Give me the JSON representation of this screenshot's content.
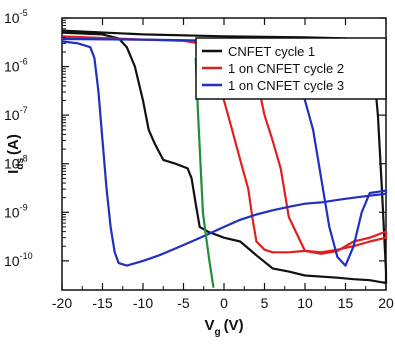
{
  "chart_data": {
    "type": "line",
    "title": "",
    "xlabel": "V",
    "xlabel_sub": "g",
    "xlabel_unit": "(V)",
    "ylabel": "I",
    "ylabel_sub": "ds",
    "ylabel_unit": "(A)",
    "xlim": [
      -20,
      20
    ],
    "ylim_log10": [
      -10.6,
      -5
    ],
    "y_scale": "log",
    "grid": false,
    "legend_position": "top-right",
    "x_ticks": [
      -20,
      -15,
      -10,
      -5,
      0,
      5,
      10,
      15,
      20
    ],
    "x_tick_labels": [
      "-20",
      "-15",
      "-10",
      "-5",
      "0",
      "5",
      "10",
      "15",
      "20"
    ],
    "y_ticks_log10": [
      -10,
      -9,
      -8,
      -7,
      -6,
      -5
    ],
    "y_tick_base": "10",
    "y_tick_exps": [
      "-10",
      "-9",
      "-8",
      "-7",
      "-6",
      "-5"
    ],
    "series": [
      {
        "name": "CNFET cycle 1",
        "color": "#111111",
        "points": [
          [
            -20,
            5e-06
          ],
          [
            -15,
            4.6e-06
          ],
          [
            -13,
            3.8e-06
          ],
          [
            -12,
            2.5e-06
          ],
          [
            -11,
            1e-06
          ],
          [
            -10,
            2e-07
          ],
          [
            -9.3,
            5e-08
          ],
          [
            -8.5,
            2.5e-08
          ],
          [
            -7.5,
            1.2e-08
          ],
          [
            -6,
            1e-08
          ],
          [
            -4.5,
            8e-09
          ],
          [
            -4,
            5e-09
          ],
          [
            -3.5,
            1.5e-09
          ],
          [
            -3,
            5e-10
          ],
          [
            -2,
            4e-10
          ],
          [
            0,
            3e-10
          ],
          [
            2,
            2.5e-10
          ],
          [
            4,
            1.3e-10
          ],
          [
            6,
            7e-11
          ],
          [
            8,
            6e-11
          ],
          [
            10,
            5e-11
          ],
          [
            14,
            4.5e-11
          ],
          [
            16,
            4.2e-11
          ],
          [
            18,
            4e-11
          ],
          [
            20,
            3.5e-11
          ],
          [
            20,
            6e-11
          ],
          [
            19.5,
            3e-09
          ],
          [
            19,
            1e-07
          ],
          [
            18.5,
            8e-07
          ],
          [
            18,
            2.5e-06
          ],
          [
            17,
            3.5e-06
          ],
          [
            15,
            3.8e-06
          ],
          [
            10,
            4e-06
          ],
          [
            0,
            4.2e-06
          ],
          [
            -10,
            4.6e-06
          ],
          [
            -20,
            5.5e-06
          ]
        ]
      },
      {
        "name": "1 on CNFET cycle 2",
        "color": "#e02020",
        "points": [
          [
            -20,
            3.8e-06
          ],
          [
            -10,
            3.6e-06
          ],
          [
            -5,
            3.4e-06
          ],
          [
            -3,
            3e-06
          ],
          [
            -2,
            2e-06
          ],
          [
            -1,
            8e-07
          ],
          [
            0,
            2e-07
          ],
          [
            1,
            5e-08
          ],
          [
            2,
            1.2e-08
          ],
          [
            3,
            3e-09
          ],
          [
            3.5,
            8e-10
          ],
          [
            4,
            2.5e-10
          ],
          [
            5,
            1.7e-10
          ],
          [
            6,
            1.5e-10
          ],
          [
            8,
            1.5e-10
          ],
          [
            10,
            1.6e-10
          ],
          [
            12,
            1.5e-10
          ],
          [
            14,
            1.7e-10
          ],
          [
            16,
            2e-10
          ],
          [
            18,
            2.5e-10
          ],
          [
            20,
            3e-10
          ],
          [
            20,
            4e-10
          ],
          [
            18,
            3e-10
          ],
          [
            16,
            2.5e-10
          ],
          [
            14,
            1.6e-10
          ],
          [
            12,
            1.4e-10
          ],
          [
            10,
            1.6e-10
          ],
          [
            8,
            8e-10
          ],
          [
            7,
            8e-09
          ],
          [
            6,
            3e-08
          ],
          [
            5,
            1e-07
          ],
          [
            4,
            6e-07
          ],
          [
            3,
            1.5e-06
          ],
          [
            2,
            2.5e-06
          ],
          [
            0,
            3.2e-06
          ],
          [
            -10,
            3.6e-06
          ],
          [
            -20,
            4.2e-06
          ]
        ]
      },
      {
        "name": "1 on CNFET cycle 3",
        "color": "#2030c0",
        "points": [
          [
            -20,
            3.3e-06
          ],
          [
            -18,
            3e-06
          ],
          [
            -16.5,
            2.5e-06
          ],
          [
            -16,
            1.5e-06
          ],
          [
            -15.5,
            3e-07
          ],
          [
            -15,
            3e-08
          ],
          [
            -14.5,
            3e-09
          ],
          [
            -14,
            5e-10
          ],
          [
            -13.5,
            1.5e-10
          ],
          [
            -13,
            9e-11
          ],
          [
            -12,
            8e-11
          ],
          [
            -10,
            1e-10
          ],
          [
            -8,
            1.3e-10
          ],
          [
            -6,
            1.8e-10
          ],
          [
            -4,
            2.5e-10
          ],
          [
            -2,
            3.5e-10
          ],
          [
            0,
            5e-10
          ],
          [
            2,
            7e-10
          ],
          [
            4,
            9e-10
          ],
          [
            6,
            1.1e-09
          ],
          [
            8,
            1.3e-09
          ],
          [
            10,
            1.5e-09
          ],
          [
            12,
            1.6e-09
          ],
          [
            14,
            1.8e-09
          ],
          [
            16,
            2e-09
          ],
          [
            18,
            2.2e-09
          ],
          [
            20,
            2.4e-09
          ],
          [
            20,
            2.8e-09
          ],
          [
            18,
            2.5e-09
          ],
          [
            17,
            1e-09
          ],
          [
            16,
            2e-10
          ],
          [
            15,
            8e-11
          ],
          [
            14,
            1.2e-10
          ],
          [
            13,
            5e-10
          ],
          [
            12,
            5e-09
          ],
          [
            11,
            5e-08
          ],
          [
            10,
            2e-07
          ],
          [
            9,
            8e-07
          ],
          [
            8,
            1.8e-06
          ],
          [
            6,
            2.8e-06
          ],
          [
            0,
            3.4e-06
          ],
          [
            -10,
            3.6e-06
          ],
          [
            -20,
            3.7e-06
          ]
        ]
      },
      {
        "name": "",
        "color": "#1f8f3a",
        "points": [
          [
            -3.5,
            1.5e-06
          ],
          [
            -3.2,
            1e-07
          ],
          [
            -2.9,
            1e-08
          ],
          [
            -2.6,
            1e-09
          ],
          [
            -2.3,
            4e-10
          ],
          [
            -1.8,
            1e-10
          ],
          [
            -1.3,
            2.8e-11
          ]
        ]
      }
    ]
  }
}
